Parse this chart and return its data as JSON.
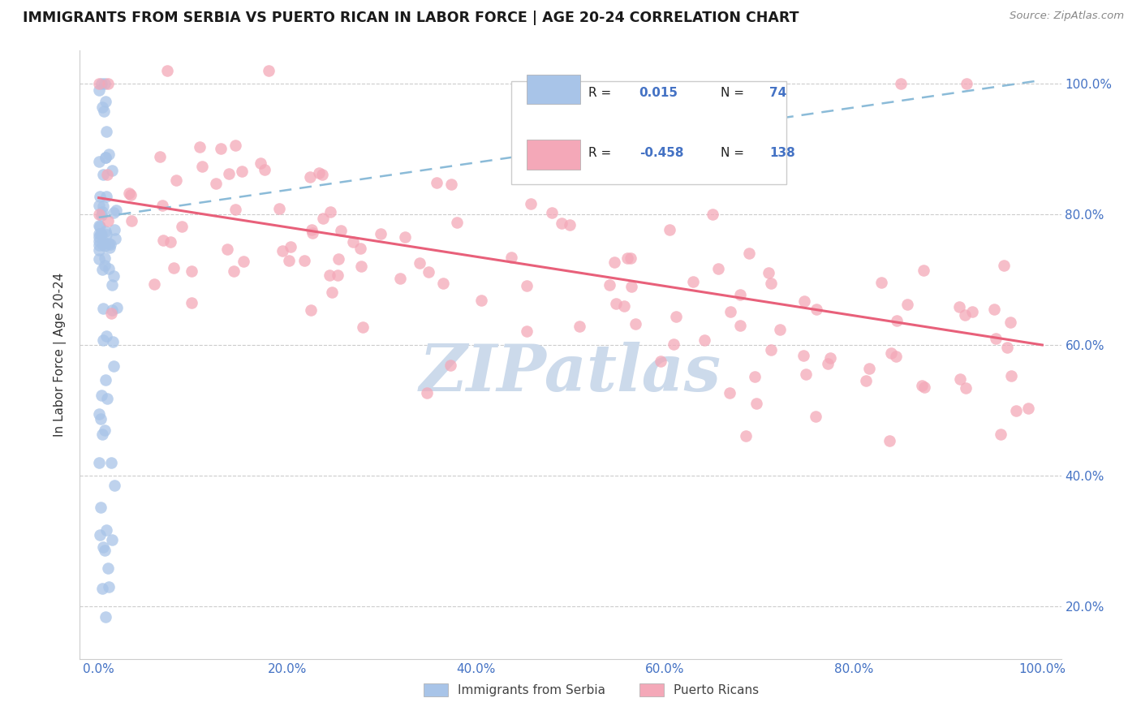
{
  "title": "IMMIGRANTS FROM SERBIA VS PUERTO RICAN IN LABOR FORCE | AGE 20-24 CORRELATION CHART",
  "source": "Source: ZipAtlas.com",
  "ylabel": "In Labor Force | Age 20-24",
  "legend_r_blue": "0.015",
  "legend_n_blue": "74",
  "legend_r_pink": "-0.458",
  "legend_n_pink": "138",
  "blue_color": "#a8c4e8",
  "pink_color": "#f4a8b8",
  "blue_line_color": "#8bbbd8",
  "pink_line_color": "#e8607a",
  "watermark_color": "#ccdaeb",
  "grid_color": "#cccccc",
  "tick_color": "#4472C4",
  "title_color": "#1a1a1a",
  "source_color": "#888888",
  "ylabel_color": "#333333",
  "xlim": [
    0.0,
    1.0
  ],
  "ylim": [
    0.12,
    1.05
  ],
  "xticks": [
    0.0,
    0.2,
    0.4,
    0.6,
    0.8,
    1.0
  ],
  "yticks_right": [
    0.2,
    0.4,
    0.6,
    0.8,
    1.0
  ],
  "blue_line_y": [
    0.795,
    1.005
  ],
  "pink_line_y": [
    0.825,
    0.6
  ],
  "scatter_alpha": 0.75,
  "scatter_size": 110
}
